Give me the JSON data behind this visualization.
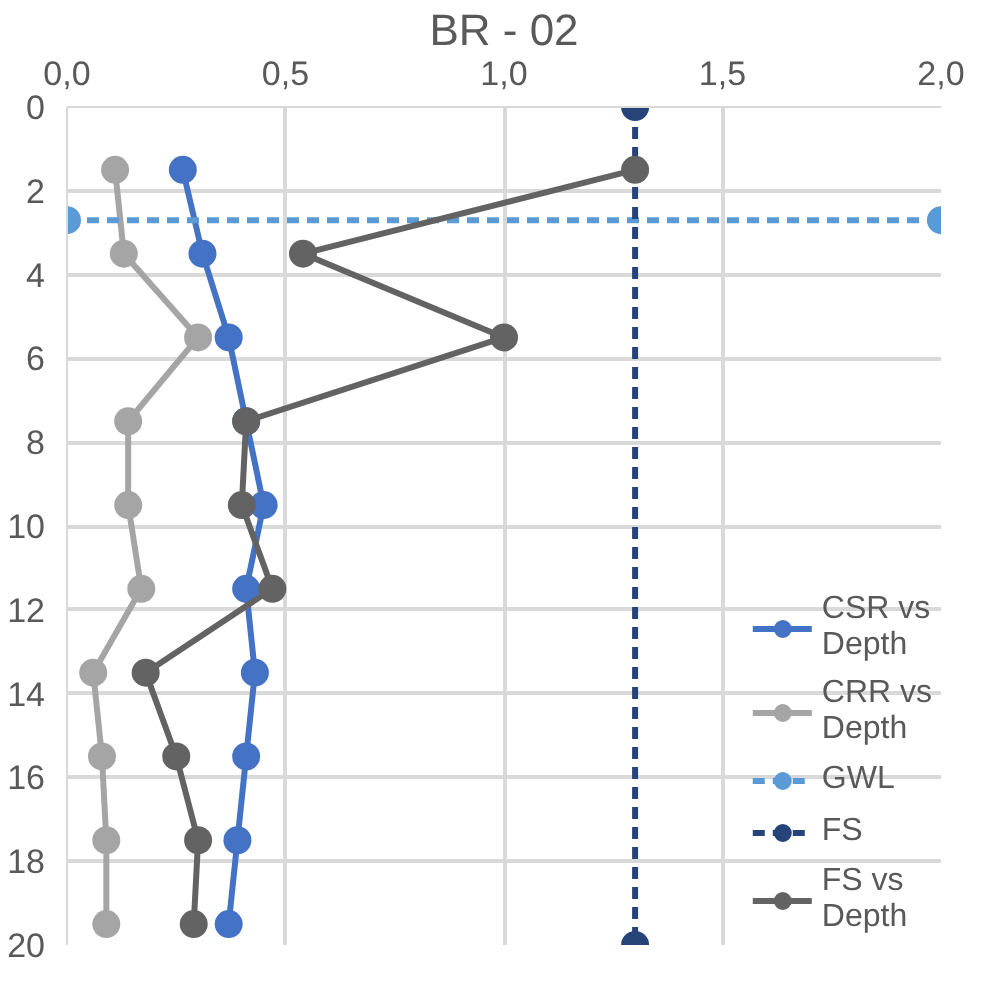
{
  "chart_data": {
    "type": "line",
    "title": "BR - 02",
    "xlim": [
      0,
      2
    ],
    "xticks": [
      {
        "value": 0,
        "label": "0,0"
      },
      {
        "value": 0.5,
        "label": "0,5"
      },
      {
        "value": 1,
        "label": "1,0"
      },
      {
        "value": 1.5,
        "label": "1,5"
      },
      {
        "value": 2,
        "label": "2,0"
      }
    ],
    "ylim": [
      20,
      0
    ],
    "yticks": [
      0,
      2,
      4,
      6,
      8,
      10,
      12,
      14,
      16,
      18,
      20
    ],
    "grid": true,
    "legend": "right",
    "marker": "circle",
    "series": [
      {
        "name": "CSR vs Depth",
        "color": "#4472c4",
        "line_style": "solid",
        "x": [
          0.265,
          0.31,
          0.37,
          0.41,
          0.45,
          0.41,
          0.43,
          0.41,
          0.39,
          0.37
        ],
        "values": [
          1.5,
          3.5,
          5.5,
          7.5,
          9.5,
          11.5,
          13.5,
          15.5,
          17.5,
          19.5
        ]
      },
      {
        "name": "CRR vs Depth",
        "color": "#a5a5a5",
        "line_style": "solid",
        "x": [
          0.11,
          0.13,
          0.3,
          0.14,
          0.14,
          0.17,
          0.06,
          0.08,
          0.09,
          0.09
        ],
        "values": [
          1.5,
          3.5,
          5.5,
          7.5,
          9.5,
          11.5,
          13.5,
          15.5,
          17.5,
          19.5
        ]
      },
      {
        "name": "GWL",
        "color": "#5b9bd5",
        "line_style": "dashed",
        "x": [
          0,
          2
        ],
        "values": [
          2.7,
          2.7
        ]
      },
      {
        "name": "FS",
        "color": "#264478",
        "line_style": "dashed",
        "x": [
          1.3,
          1.3
        ],
        "values": [
          0,
          20
        ]
      },
      {
        "name": "FS vs Depth",
        "color": "#636363",
        "line_style": "solid",
        "x": [
          1.3,
          0.54,
          1.0,
          0.41,
          0.4,
          0.47,
          0.18,
          0.25,
          0.3,
          0.29
        ],
        "values": [
          1.5,
          3.5,
          5.5,
          7.5,
          9.5,
          11.5,
          13.5,
          15.5,
          17.5,
          19.5
        ]
      }
    ]
  }
}
